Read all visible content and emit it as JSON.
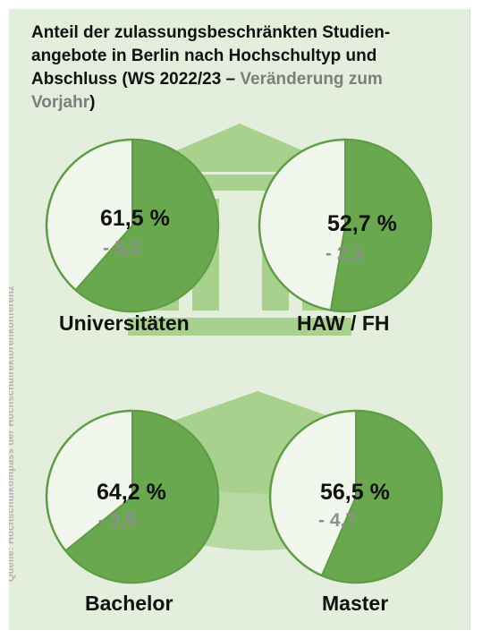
{
  "title": {
    "main": "Anteil der zulassungsbeschränkten Studien­angebote in Berlin nach Hochschultyp und Abschluss (WS 2022/23 – ",
    "accent": "Veränderung zum Vorjahr",
    "close": ")"
  },
  "source": "Quelle: Hochschulkompass der Hochschulrektorenkonferenz",
  "colors": {
    "background": "#e3efdc",
    "slice": "#6aa84f",
    "slice_stroke": "#5f9c46",
    "rest": "#f1f7ec",
    "icon": "#a9d18e",
    "text": "#111111",
    "delta": "#8e8e8e"
  },
  "icons": [
    "university-building-icon",
    "graduation-cap-icon"
  ],
  "chart_data": [
    {
      "type": "pie",
      "category": "Universitäten",
      "value": 61.5,
      "value_label": "61,5 %",
      "change": -5.2,
      "change_label": "- 5,2"
    },
    {
      "type": "pie",
      "category": "HAW / FH",
      "value": 52.7,
      "value_label": "52,7 %",
      "change": -2.3,
      "change_label": "- 2,3"
    },
    {
      "type": "pie",
      "category": "Bachelor",
      "value": 64.2,
      "value_label": "64,2 %",
      "change": -3.5,
      "change_label": "- 3,5"
    },
    {
      "type": "pie",
      "category": "Master",
      "value": 56.5,
      "value_label": "56,5 %",
      "change": -4.7,
      "change_label": "- 4,7"
    }
  ]
}
